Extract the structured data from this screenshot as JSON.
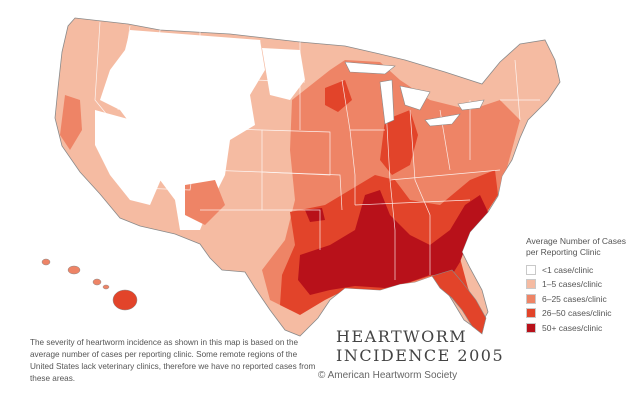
{
  "map": {
    "title_line1": "HEARTWORM",
    "title_line2": "INCIDENCE 2005",
    "credit": "© American Heartworm Society",
    "note": "The severity of heartworm incidence as shown in this map is based on the average number of cases per reporting clinic. Some remote regions of the United States lack veterinary clinics, therefore we have no reported cases from these areas."
  },
  "legend": {
    "title": "Average Number of Cases per Reporting Clinic",
    "items": [
      {
        "label": "<1 case/clinic",
        "color": "#ffffff"
      },
      {
        "label": "1–5 cases/clinic",
        "color": "#f5bba2"
      },
      {
        "label": "6–25 cases/clinic",
        "color": "#ee8466"
      },
      {
        "label": "26–50 cases/clinic",
        "color": "#e2442a"
      },
      {
        "label": "50+ cases/clinic",
        "color": "#b8111a"
      }
    ]
  },
  "colors": {
    "none": "#ffffff",
    "low": "#f5bba2",
    "mid": "#ee8466",
    "high": "#e2442a",
    "very_high": "#b8111a",
    "state_border": "#ffffff",
    "outline": "#8a8a8a"
  }
}
